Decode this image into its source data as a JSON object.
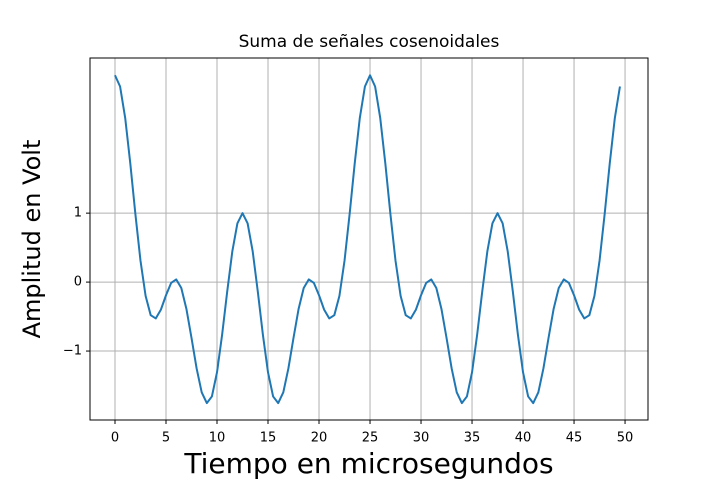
{
  "chart_data": {
    "type": "line",
    "title": "Suma de señales cosenoidales",
    "xlabel": "Tiempo en microsegundos",
    "ylabel": "Amplitud en Volt",
    "x": [
      0,
      0.5,
      1,
      1.5,
      2,
      2.5,
      3,
      3.5,
      4,
      4.5,
      5,
      5.5,
      6,
      6.5,
      7,
      7.5,
      8,
      8.5,
      9,
      9.5,
      10,
      10.5,
      11,
      11.5,
      12,
      12.5,
      13,
      13.5,
      14,
      14.5,
      15,
      15.5,
      16,
      16.5,
      17,
      17.5,
      18,
      18.5,
      19,
      19.5,
      20,
      20.5,
      21,
      21.5,
      22,
      22.5,
      23,
      23.5,
      24,
      24.5,
      25,
      25.5,
      26,
      26.5,
      27,
      27.5,
      28,
      28.5,
      29,
      29.5,
      30,
      30.5,
      31,
      31.5,
      32,
      32.5,
      33,
      33.5,
      34,
      34.5,
      35,
      35.5,
      36,
      36.5,
      37,
      37.5,
      38,
      38.5,
      39,
      39.5,
      40,
      40.5,
      41,
      41.5,
      42,
      42.5,
      43,
      43.5,
      44,
      44.5,
      45,
      45.5,
      46,
      46.5,
      47,
      47.5,
      48,
      48.5,
      49,
      49.5
    ],
    "series": [
      {
        "color": "#1f77b4",
        "values": [
          3,
          2.837,
          2.381,
          1.722,
          0.986,
          0.309,
          -0.2,
          -0.48,
          -0.527,
          -0.399,
          -0.191,
          -0.013,
          0.039,
          -0.086,
          -0.388,
          -0.809,
          -1.251,
          -1.599,
          -1.755,
          -1.658,
          -1.309,
          -0.766,
          -0.138,
          0.444,
          0.853,
          1,
          0.853,
          0.444,
          -0.138,
          -0.766,
          -1.309,
          -1.658,
          -1.755,
          -1.599,
          -1.251,
          -0.809,
          -0.388,
          -0.086,
          0.039,
          -0.013,
          -0.191,
          -0.399,
          -0.527,
          -0.48,
          -0.2,
          0.309,
          0.986,
          1.722,
          2.381,
          2.837,
          3,
          2.837,
          2.381,
          1.722,
          0.986,
          0.309,
          -0.2,
          -0.48,
          -0.527,
          -0.399,
          -0.191,
          -0.013,
          0.039,
          -0.086,
          -0.388,
          -0.809,
          -1.251,
          -1.599,
          -1.755,
          -1.658,
          -1.309,
          -0.766,
          -0.138,
          0.444,
          0.853,
          1,
          0.853,
          0.444,
          -0.138,
          -0.766,
          -1.309,
          -1.658,
          -1.755,
          -1.599,
          -1.251,
          -0.809,
          -0.388,
          -0.086,
          0.039,
          -0.013,
          -0.191,
          -0.399,
          -0.527,
          -0.48,
          -0.2,
          0.309,
          0.986,
          1.722,
          2.381,
          2.837
        ]
      }
    ],
    "xlim": [
      -2.45,
      52.25
    ],
    "xticks": [
      0,
      5,
      10,
      15,
      20,
      25,
      30,
      35,
      40,
      45,
      50
    ],
    "ylim": [
      -2.0,
      3.25
    ],
    "yticks": [
      {
        "value": -1,
        "label": "−1"
      },
      0,
      1
    ],
    "grid": true
  }
}
